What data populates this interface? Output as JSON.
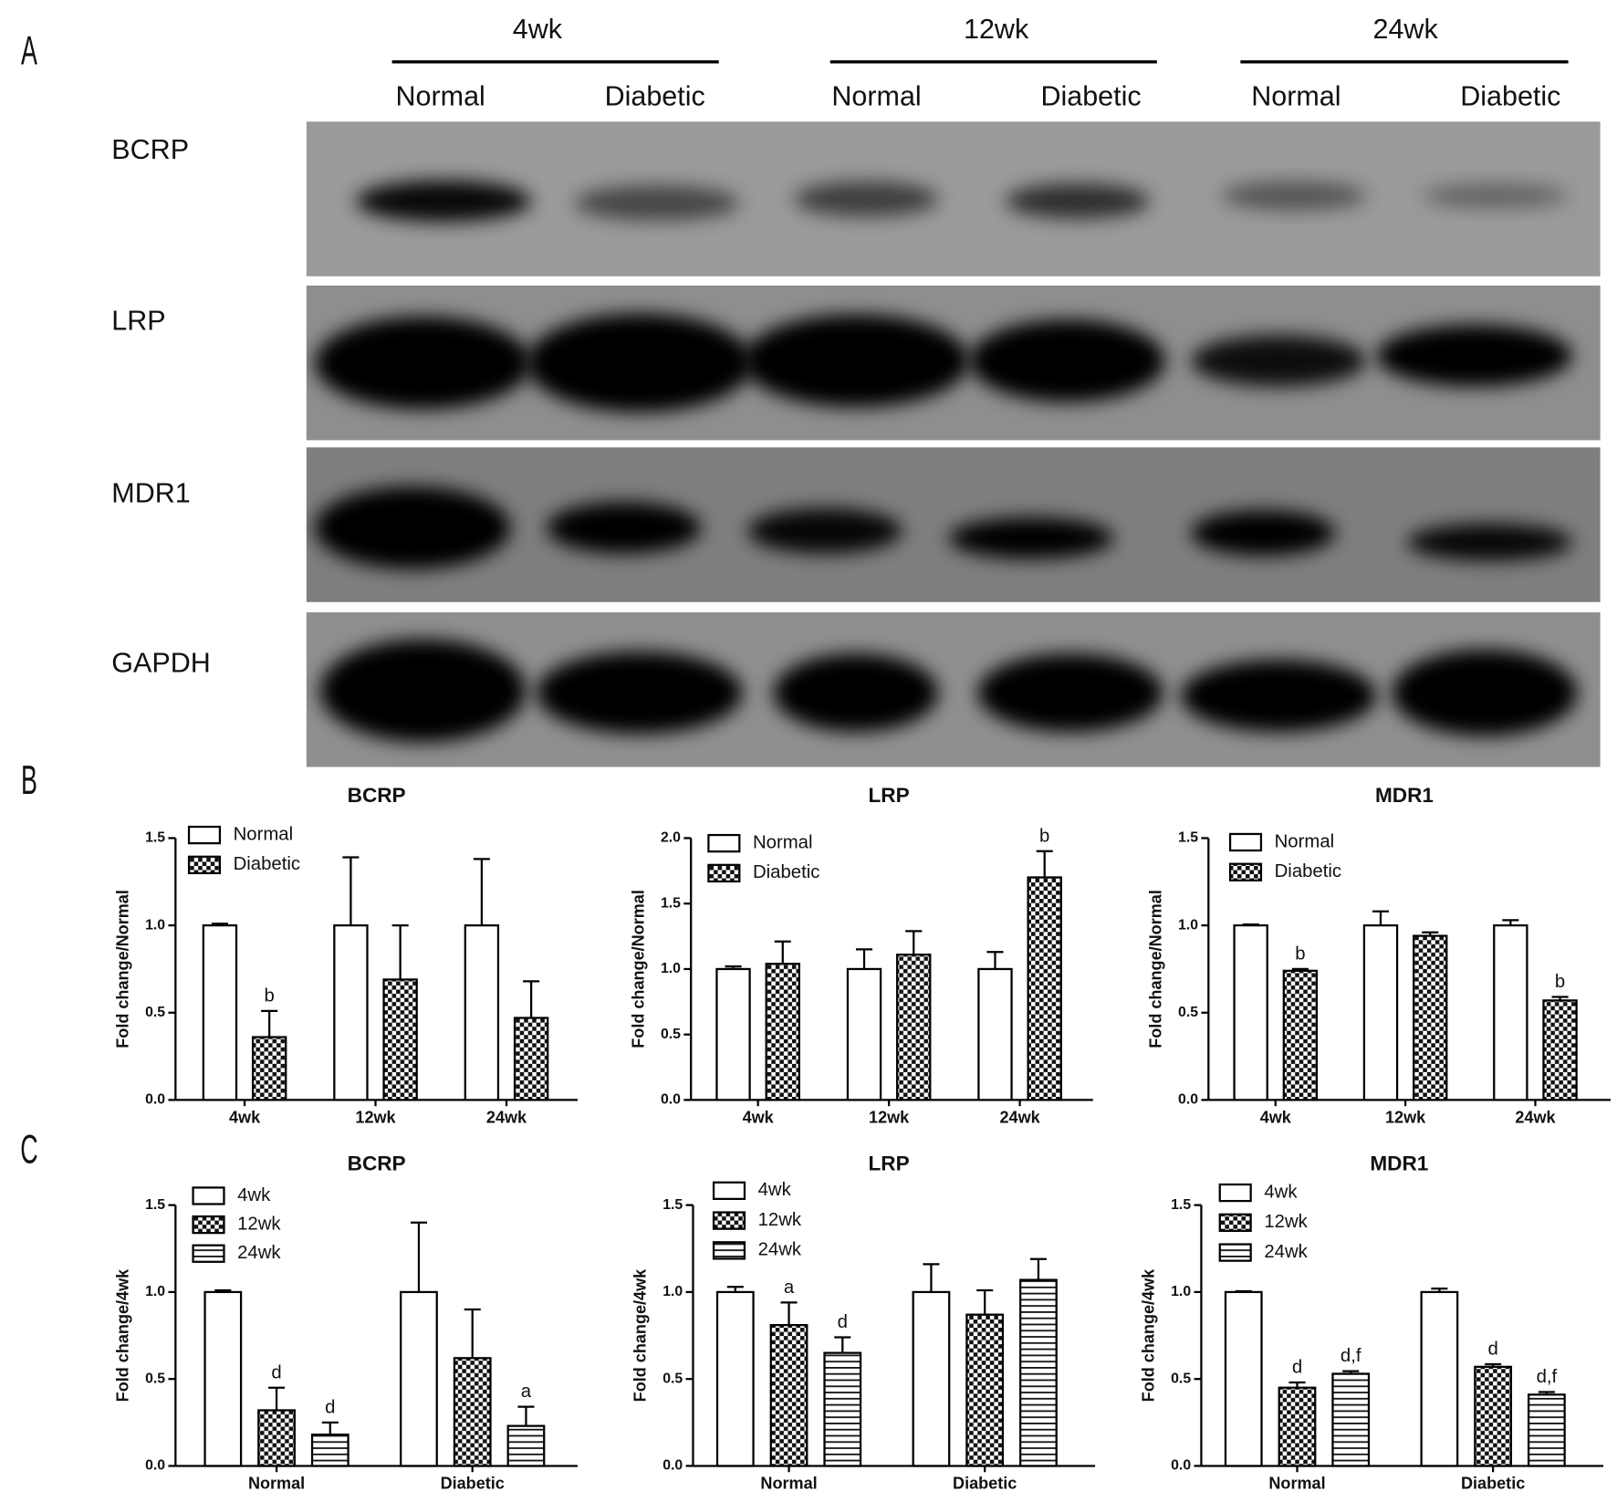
{
  "panels": [
    "A",
    "B",
    "C"
  ],
  "blot": {
    "groups": [
      "4wk",
      "12wk",
      "24wk"
    ],
    "lanes": [
      "Normal",
      "Diabetic",
      "Normal",
      "Diabetic",
      "Normal",
      "Diabetic"
    ],
    "proteins": [
      "BCRP",
      "LRP",
      "MDR1",
      "GAPDH"
    ]
  },
  "chart_data": [
    {
      "type": "bar",
      "title": "BCRP",
      "ylabel": "Fold change/Normal",
      "categories": [
        "4wk",
        "12wk",
        "24wk"
      ],
      "ylim": [
        0,
        1.5
      ],
      "yticks": [
        {
          "value": 0,
          "label": "0.0"
        },
        {
          "value": 0.5,
          "label": "0.5"
        },
        {
          "value": 1,
          "label": "1.0"
        },
        {
          "value": 1.5,
          "label": "1.5"
        }
      ],
      "series": [
        {
          "name": "Normal",
          "pattern": "open",
          "values": [
            1,
            1,
            1
          ],
          "errors": [
            0.01,
            0.39,
            0.38
          ],
          "annotations": [
            null,
            null,
            null
          ]
        },
        {
          "name": "Diabetic",
          "pattern": "checker",
          "values": [
            0.36,
            0.69,
            0.47
          ],
          "errors": [
            0.15,
            0.31,
            0.21
          ],
          "annotations": [
            "b",
            null,
            null
          ]
        }
      ]
    },
    {
      "type": "bar",
      "title": "LRP",
      "ylabel": "Fold change/Normal",
      "categories": [
        "4wk",
        "12wk",
        "24wk"
      ],
      "ylim": [
        0,
        2
      ],
      "yticks": [
        {
          "value": 0,
          "label": "0.0"
        },
        {
          "value": 0.5,
          "label": "0.5"
        },
        {
          "value": 1,
          "label": "1.0"
        },
        {
          "value": 1.5,
          "label": "1.5"
        },
        {
          "value": 2,
          "label": "2.0"
        }
      ],
      "series": [
        {
          "name": "Normal",
          "pattern": "open",
          "values": [
            1,
            1,
            1
          ],
          "errors": [
            0.02,
            0.15,
            0.13
          ],
          "annotations": [
            null,
            null,
            null
          ]
        },
        {
          "name": "Diabetic",
          "pattern": "checker",
          "values": [
            1.04,
            1.11,
            1.7
          ],
          "errors": [
            0.17,
            0.18,
            0.2
          ],
          "annotations": [
            null,
            null,
            "b"
          ]
        }
      ]
    },
    {
      "type": "bar",
      "title": "MDR1",
      "ylabel": "Fold change/Normal",
      "categories": [
        "4wk",
        "12wk",
        "24wk"
      ],
      "ylim": [
        0,
        1.5
      ],
      "yticks": [
        {
          "value": 0,
          "label": "0.0"
        },
        {
          "value": 0.5,
          "label": "0.5"
        },
        {
          "value": 1,
          "label": "1.0"
        },
        {
          "value": 1.5,
          "label": "1.5"
        }
      ],
      "series": [
        {
          "name": "Normal",
          "pattern": "open",
          "values": [
            1,
            1,
            1
          ],
          "errors": [
            0.005,
            0.08,
            0.03
          ],
          "annotations": [
            null,
            null,
            null
          ]
        },
        {
          "name": "Diabetic",
          "pattern": "checker",
          "values": [
            0.74,
            0.94,
            0.57
          ],
          "errors": [
            0.01,
            0.02,
            0.02
          ],
          "annotations": [
            "b",
            null,
            "b"
          ]
        }
      ]
    },
    {
      "type": "bar",
      "title": "BCRP",
      "ylabel": "Fold change/4wk",
      "categories": [
        "Normal",
        "Diabetic"
      ],
      "ylim": [
        0,
        1.5
      ],
      "yticks": [
        {
          "value": 0,
          "label": "0.0"
        },
        {
          "value": 0.5,
          "label": "0.5"
        },
        {
          "value": 1,
          "label": "1.0"
        },
        {
          "value": 1.5,
          "label": "1.5"
        }
      ],
      "series": [
        {
          "name": "4wk",
          "pattern": "open",
          "values": [
            1,
            1
          ],
          "errors": [
            0.01,
            0.4
          ],
          "annotations": [
            null,
            null
          ]
        },
        {
          "name": "12wk",
          "pattern": "checker",
          "values": [
            0.32,
            0.62
          ],
          "errors": [
            0.13,
            0.28
          ],
          "annotations": [
            "d",
            null
          ]
        },
        {
          "name": "24wk",
          "pattern": "stripes",
          "values": [
            0.18,
            0.23
          ],
          "errors": [
            0.07,
            0.11
          ],
          "annotations": [
            "d",
            "a"
          ]
        }
      ]
    },
    {
      "type": "bar",
      "title": "LRP",
      "ylabel": "Fold change/4wk",
      "categories": [
        "Normal",
        "Diabetic"
      ],
      "ylim": [
        0,
        1.5
      ],
      "yticks": [
        {
          "value": 0,
          "label": "0.0"
        },
        {
          "value": 0.5,
          "label": "0.5"
        },
        {
          "value": 1,
          "label": "1.0"
        },
        {
          "value": 1.5,
          "label": "1.5"
        }
      ],
      "series": [
        {
          "name": "4wk",
          "pattern": "open",
          "values": [
            1,
            1
          ],
          "errors": [
            0.03,
            0.16
          ],
          "annotations": [
            null,
            null
          ]
        },
        {
          "name": "12wk",
          "pattern": "checker",
          "values": [
            0.81,
            0.87
          ],
          "errors": [
            0.13,
            0.14
          ],
          "annotations": [
            "a",
            null
          ]
        },
        {
          "name": "24wk",
          "pattern": "stripes",
          "values": [
            0.65,
            1.07
          ],
          "errors": [
            0.09,
            0.12
          ],
          "annotations": [
            "d",
            null
          ]
        }
      ]
    },
    {
      "type": "bar",
      "title": "MDR1",
      "ylabel": "Fold change/4wk",
      "categories": [
        "Normal",
        "Diabetic"
      ],
      "ylim": [
        0,
        1.5
      ],
      "yticks": [
        {
          "value": 0,
          "label": "0.0"
        },
        {
          "value": 0.5,
          "label": "0.5"
        },
        {
          "value": 1,
          "label": "1.0"
        },
        {
          "value": 1.5,
          "label": "1.5"
        }
      ],
      "series": [
        {
          "name": "4wk",
          "pattern": "open",
          "values": [
            1,
            1
          ],
          "errors": [
            0.005,
            0.02
          ],
          "annotations": [
            null,
            null
          ]
        },
        {
          "name": "12wk",
          "pattern": "checker",
          "values": [
            0.45,
            0.57
          ],
          "errors": [
            0.03,
            0.015
          ],
          "annotations": [
            "d",
            "d"
          ]
        },
        {
          "name": "24wk",
          "pattern": "stripes",
          "values": [
            0.53,
            0.41
          ],
          "errors": [
            0.015,
            0.015
          ],
          "annotations": [
            "d,f",
            "d,f"
          ]
        }
      ]
    }
  ]
}
